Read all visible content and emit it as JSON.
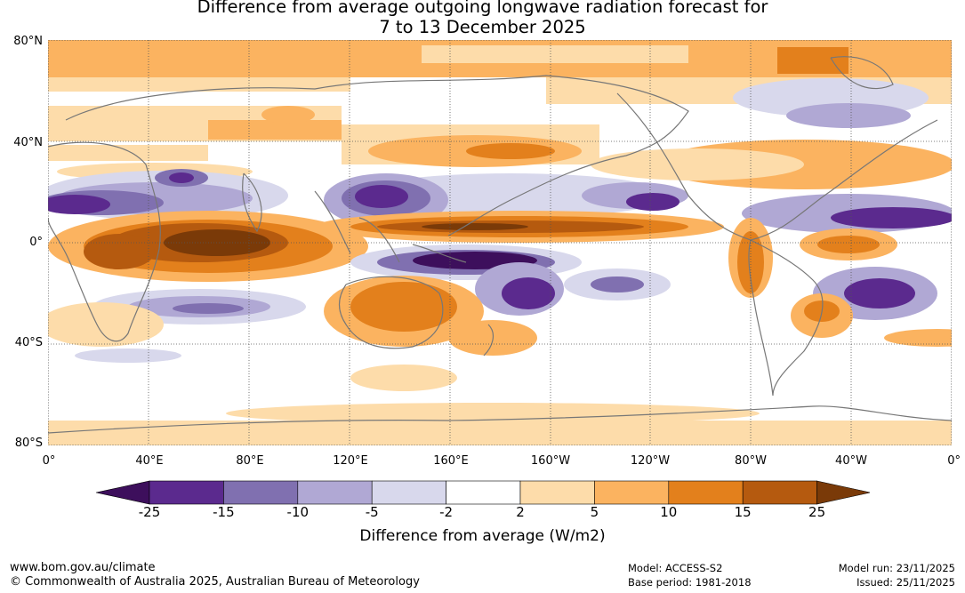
{
  "title": {
    "line1": "Difference from average outgoing longwave radiation forecast for",
    "line2": "7 to 13 December 2025"
  },
  "map": {
    "lat_labels": [
      "80°N",
      "40°N",
      "0°",
      "40°S",
      "80°S"
    ],
    "lon_labels": [
      "0°",
      "40°E",
      "80°E",
      "120°E",
      "160°E",
      "160°W",
      "120°W",
      "80°W",
      "40°W",
      "0°"
    ]
  },
  "colorbar": {
    "tick_labels": [
      "-25",
      "-15",
      "-10",
      "-5",
      "-2",
      "2",
      "5",
      "10",
      "15",
      "25"
    ],
    "colors": [
      "#3d0f5c",
      "#5b2a8e",
      "#8070b0",
      "#b0a8d4",
      "#d8d8ec",
      "#ffffff",
      "#fddcaa",
      "#fbb360",
      "#e3801c",
      "#b55a0f",
      "#7a3a08"
    ],
    "label": "Difference from average (W/m2)"
  },
  "footer": {
    "website": "www.bom.gov.au/climate",
    "copyright": "© Commonwealth of Australia 2025, Australian Bureau of Meteorology",
    "model": "Model: ACCESS-S2",
    "base_period": "Base period: 1981-2018",
    "model_run": "Model run: 23/11/2025",
    "issued": "Issued: 25/11/2025"
  }
}
